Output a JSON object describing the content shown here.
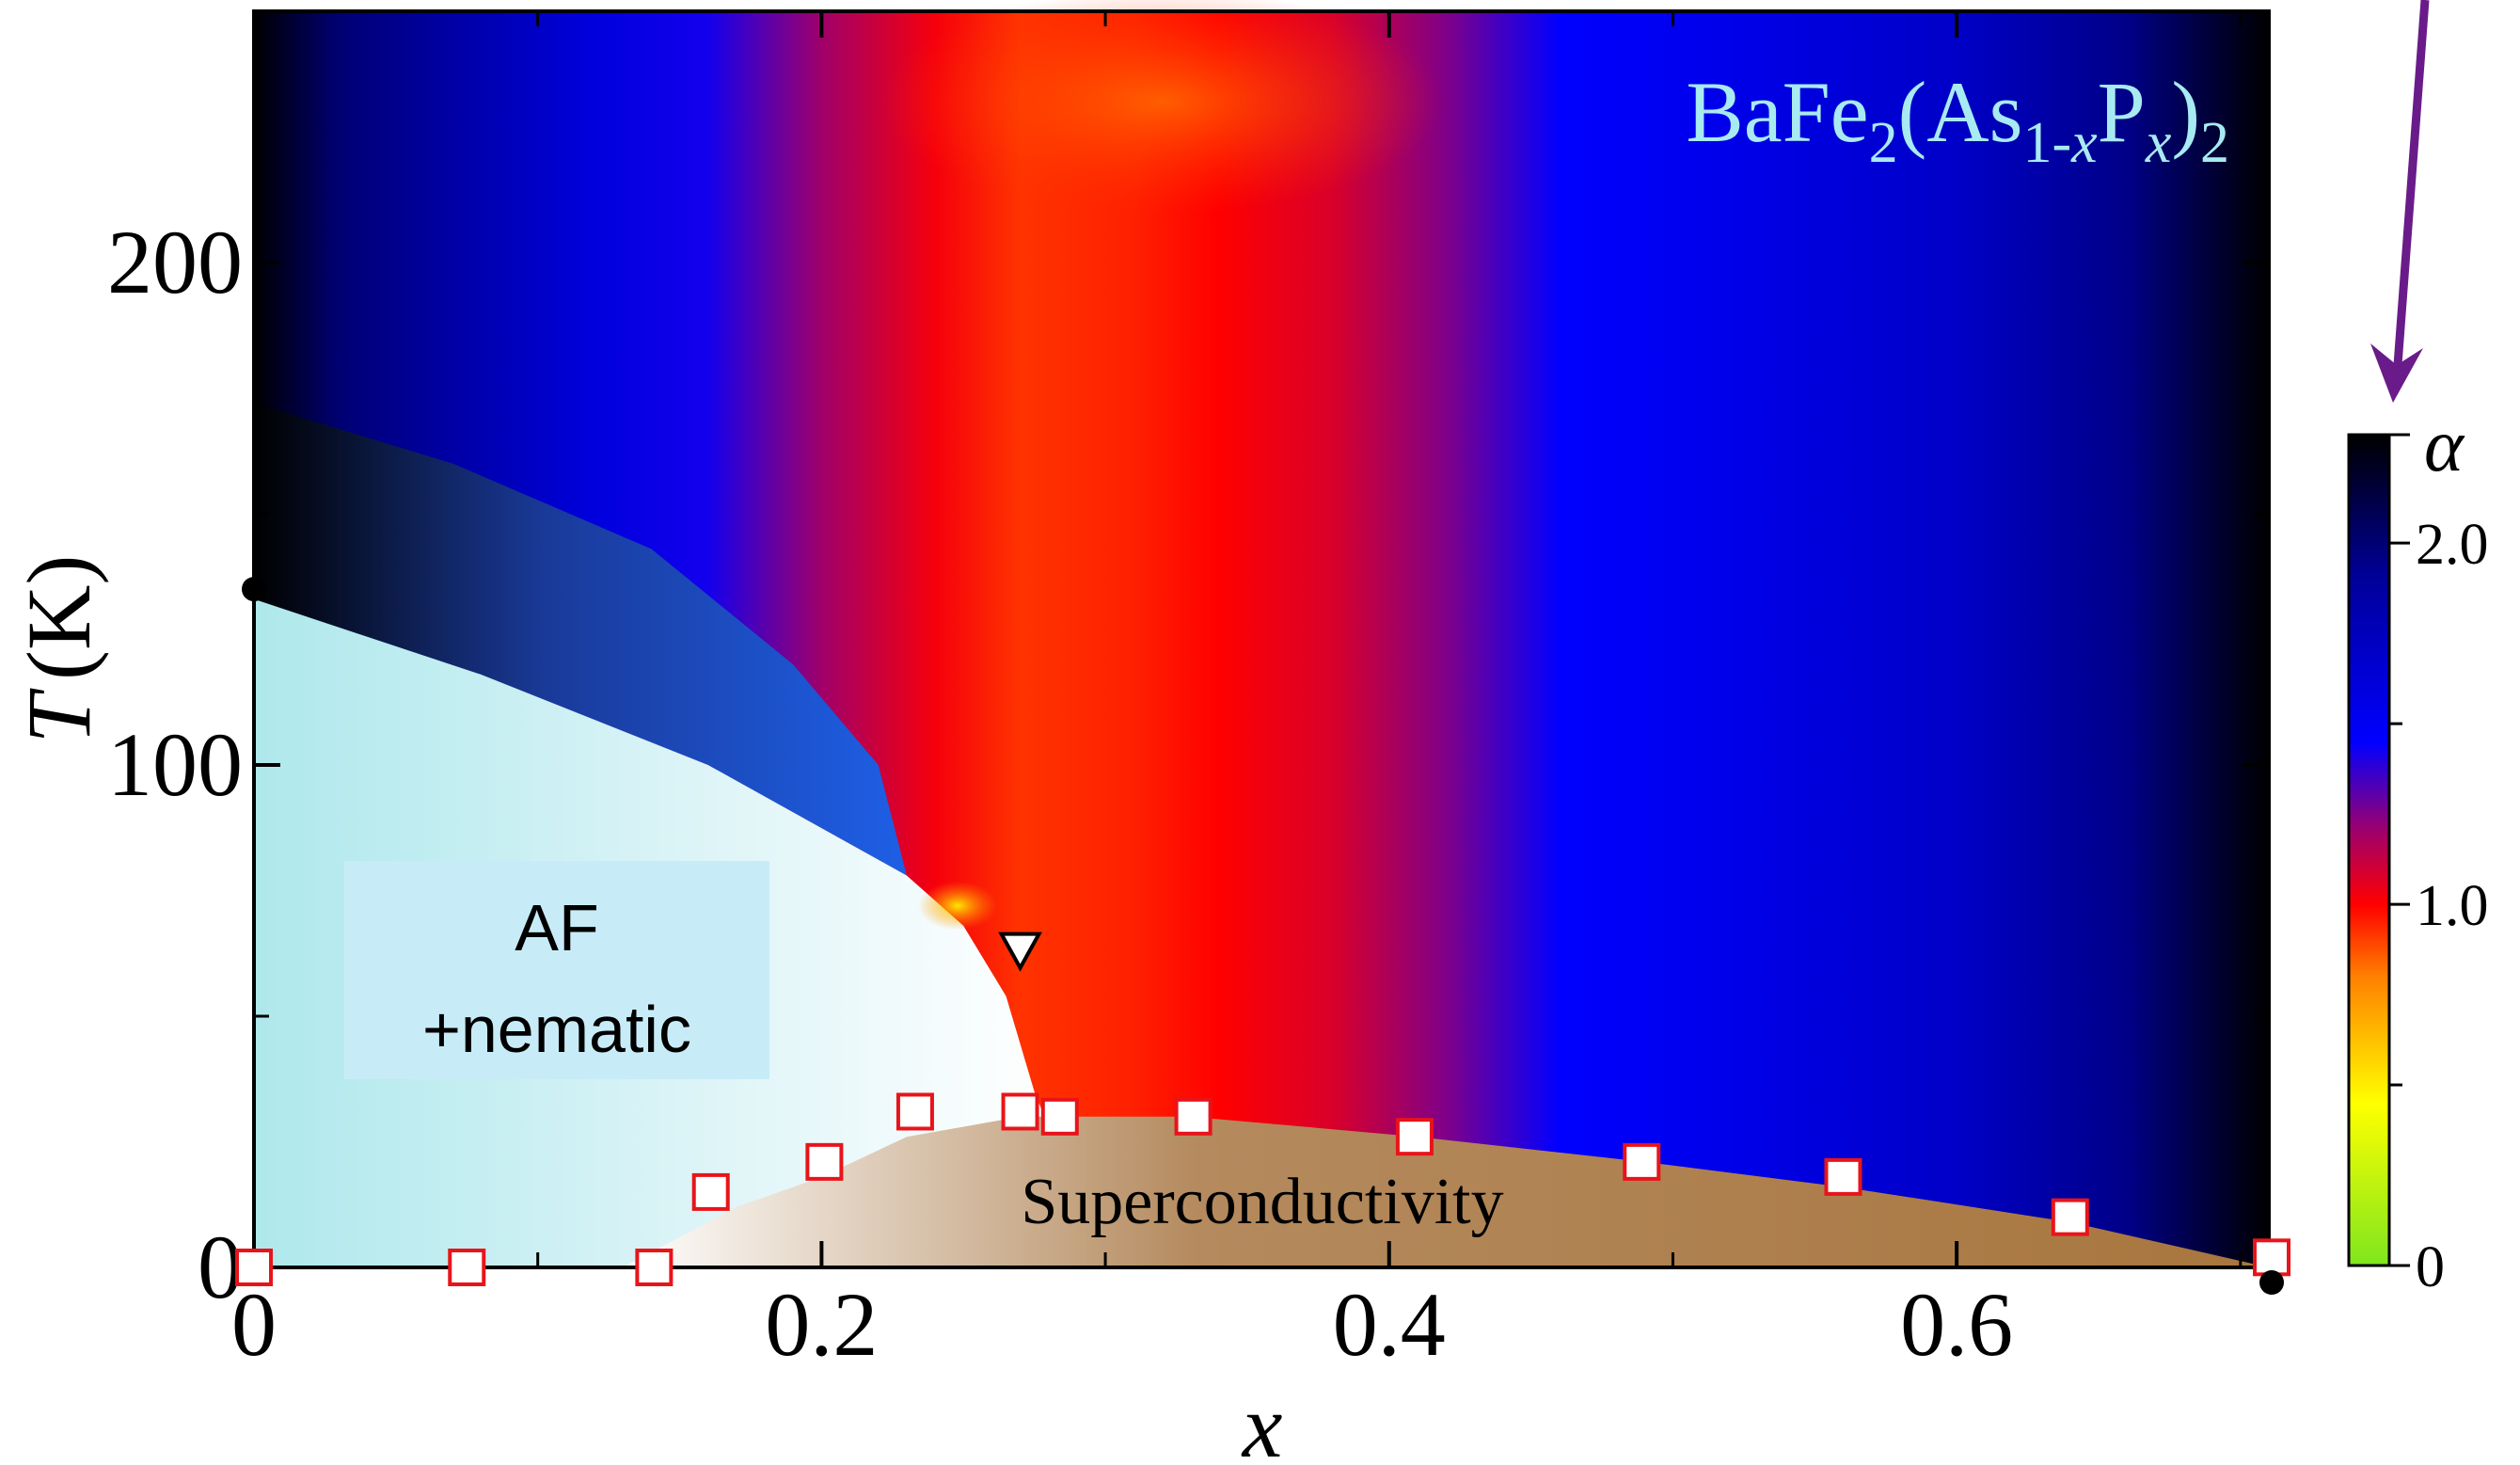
{
  "chart_data": {
    "type": "heatmap",
    "title": "BaFe2(As1-xPx)2",
    "title_parts": {
      "base": "BaFe",
      "sub1": "2",
      "open": "(As",
      "sub2": "1-x",
      "mid": "P",
      "sub3": "x",
      "close": ")",
      "sub4": "2"
    },
    "xlabel": "x",
    "ylabel_italic": "T",
    "ylabel_unit": "(K)",
    "xlim": [
      0,
      0.71
    ],
    "ylim": [
      0,
      250
    ],
    "x_ticks": [
      {
        "value": 0,
        "label": "0"
      },
      {
        "value": 0.2,
        "label": "0.2"
      },
      {
        "value": 0.4,
        "label": "0.4"
      },
      {
        "value": 0.6,
        "label": "0.6"
      }
    ],
    "x_minor_ticks": [
      0.1,
      0.3,
      0.5,
      0.7
    ],
    "y_ticks": [
      {
        "value": 0,
        "label": "0"
      },
      {
        "value": 100,
        "label": "100"
      },
      {
        "value": 200,
        "label": "200"
      }
    ],
    "y_minor_ticks": [
      50,
      150
    ],
    "colorbar": {
      "label": "α",
      "range": [
        0,
        2.3
      ],
      "ticks": [
        {
          "value": 0,
          "label": "0"
        },
        {
          "value": 1.0,
          "label": "1.0"
        },
        {
          "value": 2.0,
          "label": "2.0"
        }
      ],
      "minor_ticks": [
        0.5,
        1.5
      ],
      "stops": [
        {
          "value": 0.0,
          "color": "#7fe61e"
        },
        {
          "value": 0.45,
          "color": "#ffff00"
        },
        {
          "value": 0.8,
          "color": "#ff8000"
        },
        {
          "value": 1.0,
          "color": "#ff0000"
        },
        {
          "value": 1.2,
          "color": "#a0006a"
        },
        {
          "value": 1.45,
          "color": "#0000ff"
        },
        {
          "value": 1.9,
          "color": "#00009a"
        },
        {
          "value": 2.3,
          "color": "#000000"
        }
      ]
    },
    "heatmap_columns": [
      {
        "x": 0.0,
        "alpha": 2.3
      },
      {
        "x": 0.03,
        "alpha": 2.0
      },
      {
        "x": 0.07,
        "alpha": 1.85
      },
      {
        "x": 0.12,
        "alpha": 1.6
      },
      {
        "x": 0.16,
        "alpha": 1.42
      },
      {
        "x": 0.2,
        "alpha": 1.2
      },
      {
        "x": 0.24,
        "alpha": 1.02
      },
      {
        "x": 0.27,
        "alpha": 0.92
      },
      {
        "x": 0.31,
        "alpha": 0.95
      },
      {
        "x": 0.34,
        "alpha": 1.0
      },
      {
        "x": 0.38,
        "alpha": 1.08
      },
      {
        "x": 0.42,
        "alpha": 1.25
      },
      {
        "x": 0.46,
        "alpha": 1.45
      },
      {
        "x": 0.52,
        "alpha": 1.55
      },
      {
        "x": 0.6,
        "alpha": 1.7
      },
      {
        "x": 0.66,
        "alpha": 1.95
      },
      {
        "x": 0.71,
        "alpha": 2.3
      }
    ],
    "regions": [
      {
        "name": "AF region",
        "label_lines": [
          "AF",
          "+nematic"
        ]
      },
      {
        "name": "Superconductivity",
        "label_lines": [
          "Superconductivity"
        ]
      }
    ],
    "af_boundary": [
      [
        0,
        133
      ],
      [
        0.08,
        118
      ],
      [
        0.16,
        100
      ],
      [
        0.23,
        78
      ],
      [
        0.25,
        68
      ],
      [
        0.265,
        54
      ],
      [
        0.275,
        35
      ],
      [
        0.28,
        28
      ]
    ],
    "structural_boundary": [
      [
        0,
        172
      ],
      [
        0.07,
        160
      ],
      [
        0.14,
        143
      ],
      [
        0.19,
        120
      ],
      [
        0.22,
        100
      ],
      [
        0.23,
        78
      ]
    ],
    "sc_dome": [
      [
        0.13,
        0
      ],
      [
        0.17,
        12
      ],
      [
        0.2,
        18
      ],
      [
        0.23,
        26
      ],
      [
        0.27,
        30
      ],
      [
        0.33,
        30
      ],
      [
        0.41,
        26
      ],
      [
        0.49,
        21
      ],
      [
        0.56,
        16
      ],
      [
        0.64,
        9
      ],
      [
        0.71,
        0
      ]
    ],
    "tc_points": [
      {
        "x": 0.0,
        "y": 0
      },
      {
        "x": 0.075,
        "y": 0
      },
      {
        "x": 0.141,
        "y": 0
      },
      {
        "x": 0.161,
        "y": 15
      },
      {
        "x": 0.201,
        "y": 21
      },
      {
        "x": 0.233,
        "y": 31
      },
      {
        "x": 0.27,
        "y": 31
      },
      {
        "x": 0.284,
        "y": 30
      },
      {
        "x": 0.331,
        "y": 30
      },
      {
        "x": 0.409,
        "y": 26
      },
      {
        "x": 0.489,
        "y": 21
      },
      {
        "x": 0.56,
        "y": 18
      },
      {
        "x": 0.64,
        "y": 10
      },
      {
        "x": 0.711,
        "y": 2
      }
    ],
    "triangle_marker": {
      "x": 0.27,
      "y": 63
    },
    "edge_markers": [
      {
        "x": 0,
        "y": 135
      },
      {
        "x": 0.711,
        "y": 0
      }
    ],
    "grid": false,
    "legend": "right colorbar"
  }
}
